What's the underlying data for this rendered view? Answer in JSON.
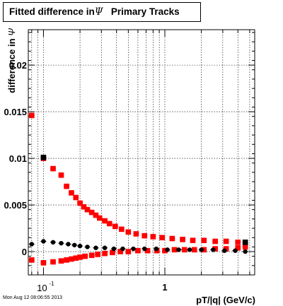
{
  "title": {
    "prefix": "Fitted difference in",
    "symbol": "Ψ",
    "suffix": "Primary Tracks"
  },
  "footer": {
    "timestamp": "Mon Aug 12 08:06:55 2013"
  },
  "colors": {
    "series_red": "#ff0000",
    "series_black": "#000000",
    "grid": "#000000"
  },
  "chart_data": {
    "type": "scatter",
    "title": "Fitted difference in Ψ   Primary Tracks",
    "xlabel": "pT/|q| (GeV/c)",
    "ylabel": "difference in Ψ",
    "x_scale": "log",
    "xlim": [
      0.075,
      5.5
    ],
    "ylim": [
      -0.0025,
      0.0238
    ],
    "grid": true,
    "legend": "none",
    "x_ticks": [
      {
        "value": 0.1,
        "base": "10",
        "exp": "-1"
      },
      {
        "value": 1,
        "label": "1"
      }
    ],
    "y_ticks": [
      {
        "value": 0,
        "label": "0"
      },
      {
        "value": 0.005,
        "label": "0.005"
      },
      {
        "value": 0.01,
        "label": "0.01"
      },
      {
        "value": 0.015,
        "label": "0.015"
      },
      {
        "value": 0.02,
        "label": "0.02"
      }
    ],
    "x_minor_ticks": [
      0.08,
      0.09,
      0.2,
      0.3,
      0.4,
      0.5,
      0.6,
      0.7,
      0.8,
      0.9,
      2,
      3,
      4,
      5
    ],
    "series": [
      {
        "marker": "square",
        "color": "#ff0000",
        "points": [
          [
            0.08,
            0.0146
          ],
          [
            0.1,
            0.01
          ],
          [
            0.12,
            0.0089
          ],
          [
            0.14,
            0.0082
          ],
          [
            0.155,
            0.007
          ],
          [
            0.17,
            0.0063
          ],
          [
            0.185,
            0.0058
          ],
          [
            0.2,
            0.0052
          ],
          [
            0.215,
            0.0048
          ],
          [
            0.23,
            0.0045
          ],
          [
            0.25,
            0.0042
          ],
          [
            0.27,
            0.0039
          ],
          [
            0.29,
            0.0036
          ],
          [
            0.32,
            0.0033
          ],
          [
            0.35,
            0.003
          ],
          [
            0.39,
            0.0027
          ],
          [
            0.44,
            0.0024
          ],
          [
            0.5,
            0.0021
          ],
          [
            0.58,
            0.0019
          ],
          [
            0.68,
            0.0017
          ],
          [
            0.8,
            0.0016
          ],
          [
            0.95,
            0.0015
          ],
          [
            1.15,
            0.0014
          ],
          [
            1.4,
            0.0013
          ],
          [
            1.7,
            0.0012
          ],
          [
            2.1,
            0.0012
          ],
          [
            2.6,
            0.0011
          ],
          [
            3.2,
            0.0011
          ],
          [
            4.0,
            0.001
          ],
          [
            4.6,
            0.0008
          ]
        ]
      },
      {
        "marker": "square",
        "color": "#ff0000",
        "points": [
          [
            0.08,
            -0.0009
          ],
          [
            0.1,
            -0.0012
          ],
          [
            0.12,
            -0.0011
          ],
          [
            0.14,
            -0.001
          ],
          [
            0.155,
            -0.0009
          ],
          [
            0.17,
            -0.0008
          ],
          [
            0.185,
            -0.0007
          ],
          [
            0.2,
            -0.0006
          ],
          [
            0.22,
            -0.0005
          ],
          [
            0.25,
            -0.0004
          ],
          [
            0.28,
            -0.0003
          ],
          [
            0.32,
            -0.0002
          ],
          [
            0.37,
            -0.0001
          ],
          [
            0.43,
            0.0
          ],
          [
            0.5,
            0.0
          ],
          [
            0.6,
            0.0001
          ],
          [
            0.72,
            0.0001
          ],
          [
            0.86,
            0.0001
          ],
          [
            1.0,
            0.0001
          ],
          [
            1.2,
            0.0002
          ],
          [
            1.45,
            0.0002
          ],
          [
            1.75,
            0.0002
          ],
          [
            2.1,
            0.0002
          ],
          [
            2.6,
            0.0003
          ],
          [
            3.2,
            0.0003
          ],
          [
            4.0,
            0.0004
          ],
          [
            4.6,
            0.0005
          ]
        ]
      },
      {
        "marker": "circle",
        "color": "#000000",
        "points": [
          [
            0.08,
            0.0008
          ],
          [
            0.1,
            0.0011
          ],
          [
            0.12,
            0.001
          ],
          [
            0.14,
            0.0009
          ],
          [
            0.16,
            0.0008
          ],
          [
            0.18,
            0.0007
          ],
          [
            0.2,
            0.0006
          ],
          [
            0.23,
            0.0005
          ],
          [
            0.27,
            0.0004
          ],
          [
            0.32,
            0.0004
          ],
          [
            0.38,
            0.0003
          ],
          [
            0.45,
            0.0003
          ],
          [
            0.55,
            0.0003
          ],
          [
            0.68,
            0.0003
          ],
          [
            0.85,
            0.0003
          ],
          [
            1.05,
            0.0002
          ],
          [
            1.3,
            0.0002
          ],
          [
            1.6,
            0.0002
          ],
          [
            2.0,
            0.0002
          ],
          [
            2.5,
            0.0002
          ],
          [
            3.1,
            0.0001
          ],
          [
            3.8,
            0.0001
          ],
          [
            4.6,
            0.0
          ]
        ]
      },
      {
        "marker": "square",
        "color": "#000000",
        "points": [
          [
            0.1,
            0.0101
          ],
          [
            4.6,
            0.001
          ]
        ]
      }
    ]
  }
}
